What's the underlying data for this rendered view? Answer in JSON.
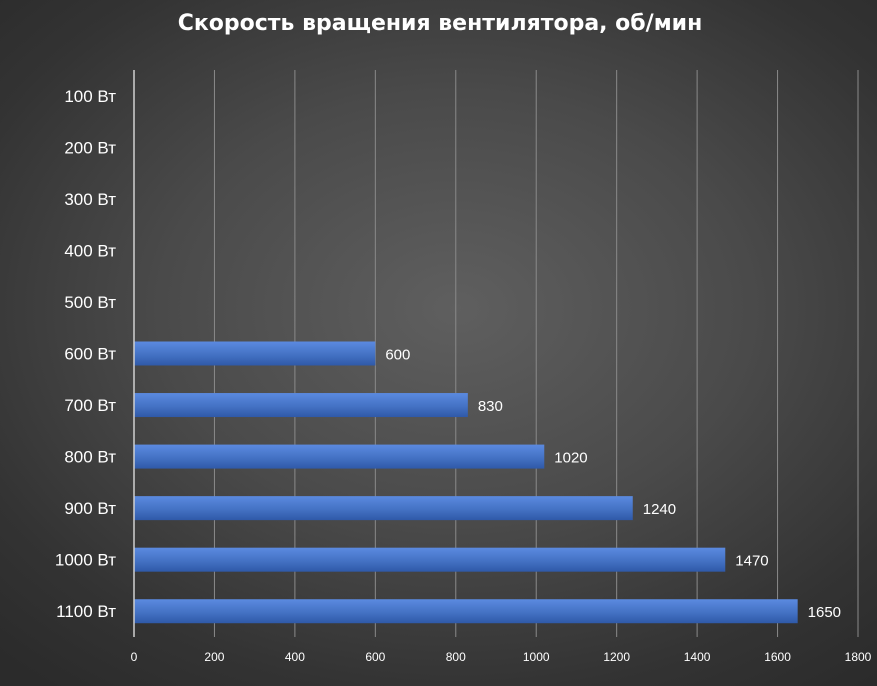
{
  "chart_data": {
    "type": "bar",
    "orientation": "horizontal",
    "title": "Скорость вращения вентилятора, об/мин",
    "categories": [
      "100 Вт",
      "200 Вт",
      "300 Вт",
      "400 Вт",
      "500 Вт",
      "600 Вт",
      "700 Вт",
      "800 Вт",
      "900 Вт",
      "1000 Вт",
      "1100 Вт"
    ],
    "values": [
      null,
      null,
      null,
      null,
      null,
      600,
      830,
      1020,
      1240,
      1470,
      1650
    ],
    "data_labels": [
      "",
      "",
      "",
      "",
      "",
      "600",
      "830",
      "1020",
      "1240",
      "1470",
      "1650"
    ],
    "xlim": [
      0,
      1800
    ],
    "xticks": [
      0,
      200,
      400,
      600,
      800,
      1000,
      1200,
      1400,
      1600,
      1800
    ],
    "grid": true,
    "legend": "none",
    "colors": {
      "bar": "#4472c4",
      "bar_light": "#5b8ae0",
      "bar_dark": "#2f59a8",
      "grid": "#8a8a8a",
      "axis": "#d0d0d0",
      "text": "#ffffff"
    }
  }
}
